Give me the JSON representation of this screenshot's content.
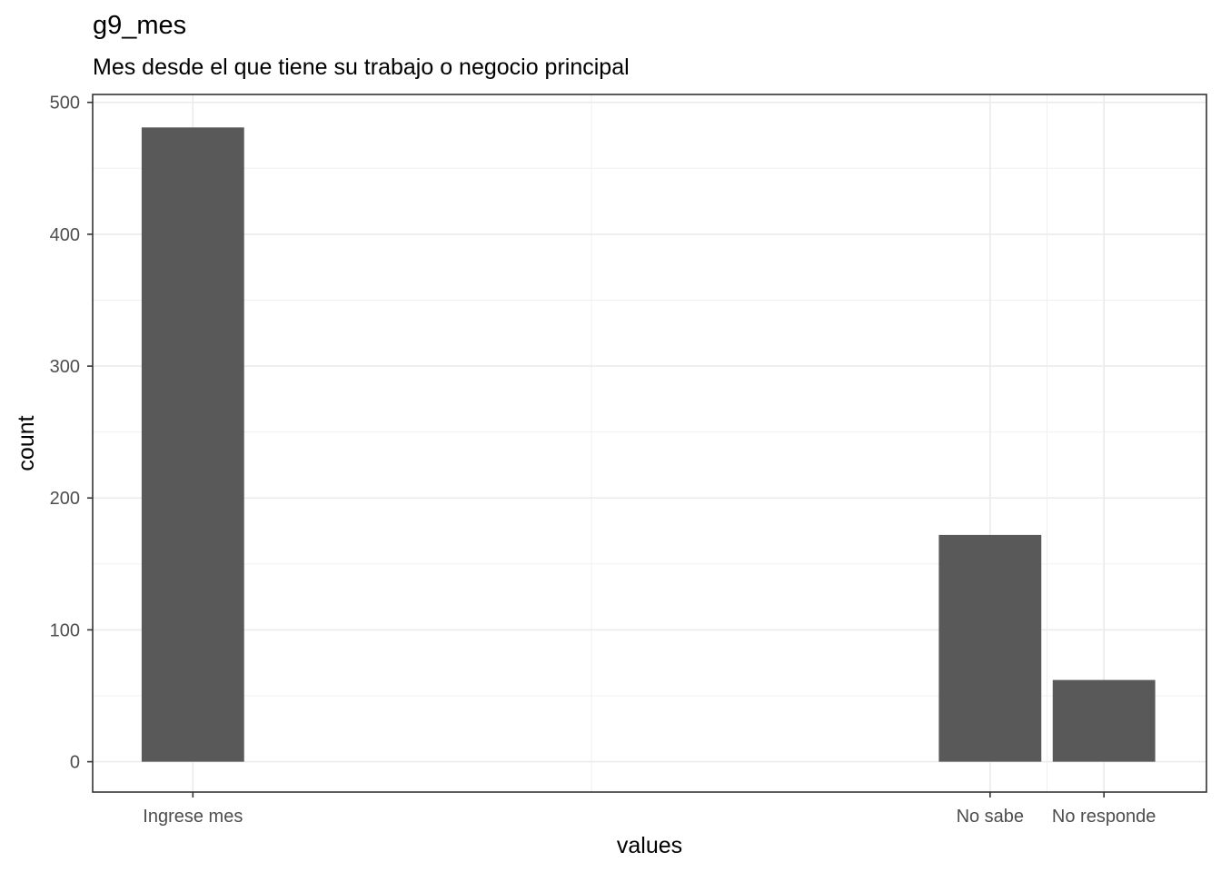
{
  "chart_data": {
    "type": "bar",
    "title": "g9_mes",
    "subtitle": "Mes desde el que tiene su trabajo o negocio principal",
    "xlabel": "values",
    "ylabel": "count",
    "categories": [
      "Ingrese mes",
      "No sabe",
      "No responde"
    ],
    "x_positions": [
      1,
      8,
      9
    ],
    "xlim": [
      0.12,
      9.9
    ],
    "values": [
      481,
      172,
      62
    ],
    "ylim": [
      -23,
      506
    ],
    "yticks": [
      0,
      100,
      200,
      300,
      400,
      500
    ],
    "ytick_labels": [
      "0",
      "100",
      "200",
      "300",
      "400",
      "500"
    ],
    "bar_color": "#595959",
    "grid": true
  }
}
